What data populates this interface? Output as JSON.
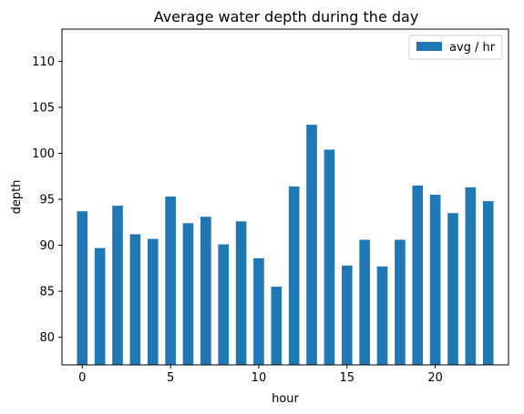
{
  "chart_data": {
    "type": "bar",
    "title": "Average water depth during the day",
    "xlabel": "hour",
    "ylabel": "depth",
    "x": [
      0,
      1,
      2,
      3,
      4,
      5,
      6,
      7,
      8,
      9,
      10,
      11,
      12,
      13,
      14,
      15,
      16,
      17,
      18,
      19,
      20,
      21,
      22,
      23
    ],
    "series": [
      {
        "name": "avg / hr",
        "color": "#1f77b4",
        "values": [
          93.7,
          89.7,
          94.3,
          91.2,
          90.7,
          95.3,
          92.4,
          93.1,
          90.1,
          92.6,
          88.6,
          85.5,
          96.4,
          103.1,
          100.4,
          87.8,
          90.6,
          87.7,
          90.6,
          96.5,
          95.5,
          93.5,
          96.3,
          94.8
        ]
      }
    ],
    "xlim": [
      -1.15,
      24.15
    ],
    "ylim": [
      77,
      113.5
    ],
    "xticks": [
      0,
      5,
      10,
      15,
      20
    ],
    "yticks": [
      80,
      85,
      90,
      95,
      100,
      105,
      110
    ],
    "bar_width": 0.6,
    "grid": false,
    "legend_position": "top-right"
  }
}
